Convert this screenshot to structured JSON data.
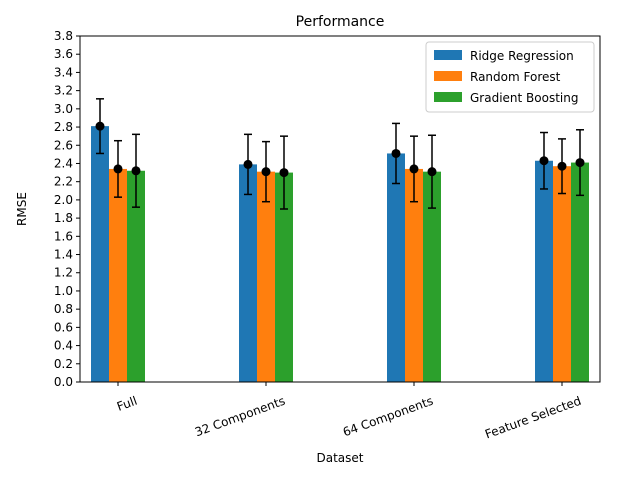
{
  "chart_data": {
    "type": "bar",
    "title": "Performance",
    "xlabel": "Dataset",
    "ylabel": "RMSE",
    "categories": [
      "Full",
      "32 Components",
      "64 Components",
      "Feature Selected"
    ],
    "ylim": [
      0,
      3.8
    ],
    "yticks": [
      0.0,
      0.2,
      0.4,
      0.6,
      0.8,
      1.0,
      1.2,
      1.4,
      1.6,
      1.8,
      2.0,
      2.2,
      2.4,
      2.6,
      2.8,
      3.0,
      3.2,
      3.4,
      3.6,
      3.8
    ],
    "legend_position": "upper right",
    "grid": false,
    "series": [
      {
        "name": "Ridge Regression",
        "color": "#1f77b4",
        "values": [
          2.81,
          2.39,
          2.51,
          2.43
        ],
        "errors": [
          0.3,
          0.33,
          0.33,
          0.31
        ],
        "points": [
          2.81,
          2.39,
          2.51,
          2.43
        ]
      },
      {
        "name": "Random Forest",
        "color": "#ff7f0e",
        "values": [
          2.34,
          2.31,
          2.34,
          2.37
        ],
        "errors": [
          0.31,
          0.33,
          0.36,
          0.3
        ],
        "points": [
          2.34,
          2.31,
          2.34,
          2.37
        ]
      },
      {
        "name": "Gradient Boosting",
        "color": "#2ca02c",
        "values": [
          2.32,
          2.3,
          2.31,
          2.41
        ],
        "errors": [
          0.4,
          0.4,
          0.4,
          0.36
        ],
        "points": [
          2.32,
          2.3,
          2.31,
          2.41
        ]
      }
    ]
  }
}
